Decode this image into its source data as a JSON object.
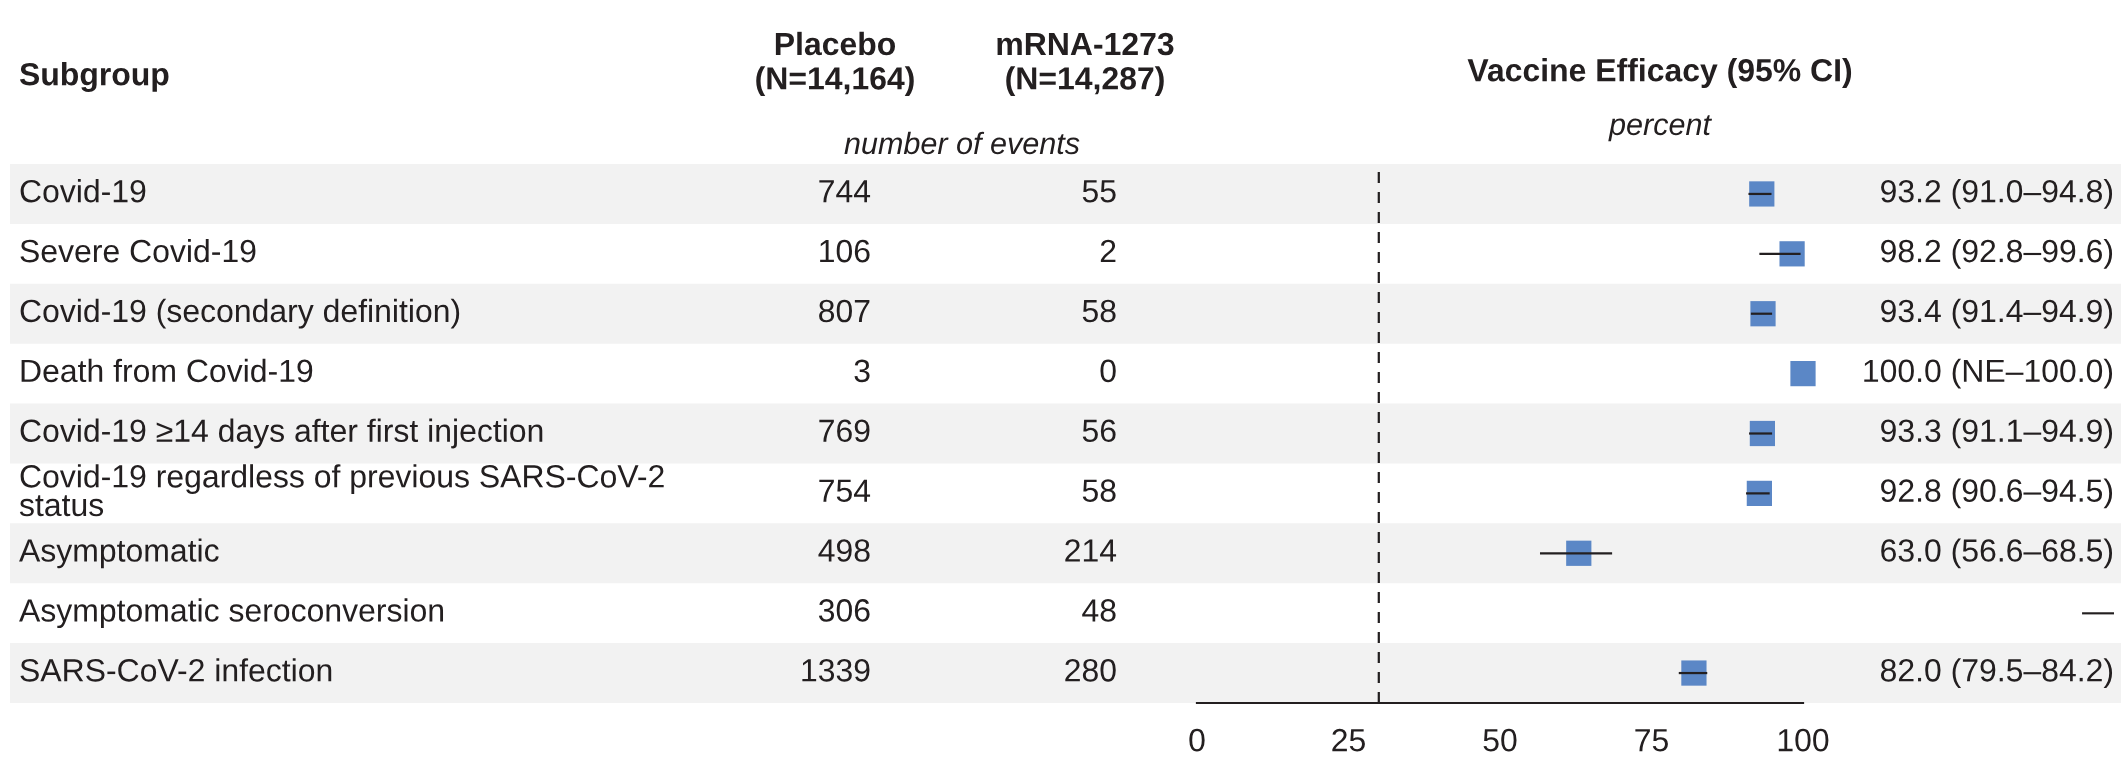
{
  "chart_data": [
    {
      "type": "other",
      "ylabel": "Subgroup",
      "subtitle": "number of events",
      "data_labels": true,
      "categories": [
        "Covid-19",
        "Severe Covid-19",
        "Covid-19 (secondary definition)",
        "Death from Covid-19",
        "Covid-19 ≥14 days after first injection",
        "Covid-19 regardless of previous SARS-CoV-2\nstatus",
        "Asymptomatic",
        "Asymptomatic seroconversion",
        "SARS-CoV-2 infection"
      ],
      "series": [
        {
          "name": "Placebo\n(N=14,164)",
          "values": [
            744,
            106,
            807,
            3,
            769,
            754,
            498,
            306,
            1339
          ]
        },
        {
          "name": "mRNA-1273\n(N=14,287)",
          "values": [
            55,
            2,
            58,
            0,
            56,
            58,
            214,
            48,
            280
          ]
        }
      ]
    },
    {
      "type": "scatter",
      "orientation": "horizontal",
      "title": "Vaccine Efficacy (95% CI)",
      "subtitle": "percent",
      "categories": [
        null,
        null,
        null,
        null,
        null,
        null,
        null,
        null,
        null
      ],
      "values": [
        93.2,
        98.2,
        93.4,
        100.0,
        93.3,
        92.8,
        63.0,
        null,
        82.0
      ],
      "errors": [
        [
          91.0,
          94.8
        ],
        [
          92.8,
          99.6
        ],
        [
          91.4,
          94.9
        ],
        null,
        [
          91.1,
          94.9
        ],
        [
          90.6,
          94.5
        ],
        [
          56.6,
          68.5
        ],
        null,
        [
          79.5,
          84.2
        ]
      ],
      "value_labels": [
        "93.2 (91.0–94.8)",
        "98.2 (92.8–99.6)",
        "93.4 (91.4–94.9)",
        "100.0 (NE–100.0)",
        "93.3 (91.1–94.9)",
        "92.8 (90.6–94.5)",
        "63.0 (56.6–68.5)",
        "—",
        "82.0 (79.5–84.2)"
      ],
      "color": "#5b87c6",
      "marker": "square",
      "xlim": [
        0,
        100
      ],
      "xticks": [
        0,
        25,
        50,
        75,
        100
      ],
      "ref_lines": [
        {
          "axis": "x",
          "value": 30,
          "color": "#231f20",
          "line_style": "dashed"
        }
      ]
    }
  ]
}
